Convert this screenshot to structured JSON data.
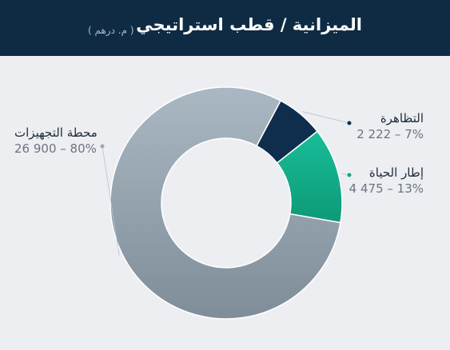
{
  "header": {
    "title": "الميزانية / قطب استراتيجي",
    "subtitle": "( م. درهم )"
  },
  "chart_data": {
    "type": "pie",
    "variant": "donut",
    "title": "الميزانية / قطب استراتيجي",
    "subtitle": "( م. درهم )",
    "slices": [
      {
        "label": "التظاهرة",
        "value": 2222,
        "percent": 7,
        "display": "2 222 – 7%",
        "color": "#0f2e4d"
      },
      {
        "label": "إطار الحياة",
        "value": 4475,
        "percent": 13,
        "display": "4 475 – 13%",
        "color": "#13a886"
      },
      {
        "label": "محطة التجهيزات",
        "value": 26900,
        "percent": 80,
        "display": "26 900 – 80%",
        "color": "#9aa8b4"
      }
    ],
    "legend": "callout-labels"
  }
}
